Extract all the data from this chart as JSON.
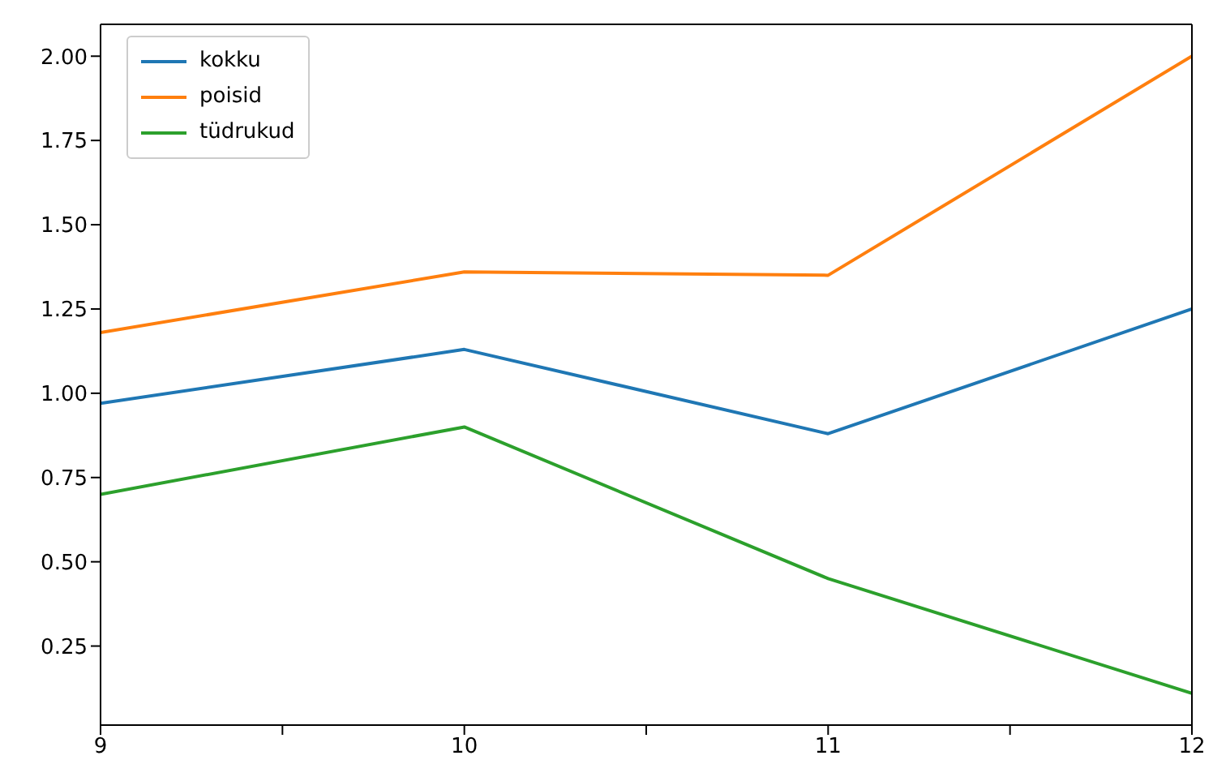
{
  "chart_data": {
    "type": "line",
    "x": [
      9,
      10,
      11,
      12
    ],
    "series": [
      {
        "name": "kokku",
        "color": "#1f77b4",
        "values": [
          0.97,
          1.13,
          0.88,
          1.25
        ]
      },
      {
        "name": "poisid",
        "color": "#ff7f0e",
        "values": [
          1.18,
          1.36,
          1.35,
          2.0
        ]
      },
      {
        "name": "tüdrukud",
        "color": "#2ca02c",
        "values": [
          0.7,
          0.9,
          0.45,
          0.11
        ]
      }
    ],
    "xlim": [
      9,
      12
    ],
    "xticks": [
      9,
      {
        "value": 9.5,
        "label": null
      },
      10,
      {
        "value": 10.5,
        "label": null
      },
      11,
      {
        "value": 11.5,
        "label": null
      },
      12
    ],
    "ylim": [
      0.0155,
      2.0945
    ],
    "yticks": [
      {
        "value": 0.25,
        "label": "0.25"
      },
      {
        "value": 0.5,
        "label": "0.50"
      },
      {
        "value": 0.75,
        "label": "0.75"
      },
      {
        "value": 1,
        "label": "1.00"
      },
      {
        "value": 1.25,
        "label": "1.25"
      },
      {
        "value": 1.5,
        "label": "1.50"
      },
      {
        "value": 1.75,
        "label": "1.75"
      },
      {
        "value": 2,
        "label": "2.00"
      }
    ],
    "grid": false,
    "legend": "top left",
    "marker": "none",
    "line_style": "solid"
  }
}
